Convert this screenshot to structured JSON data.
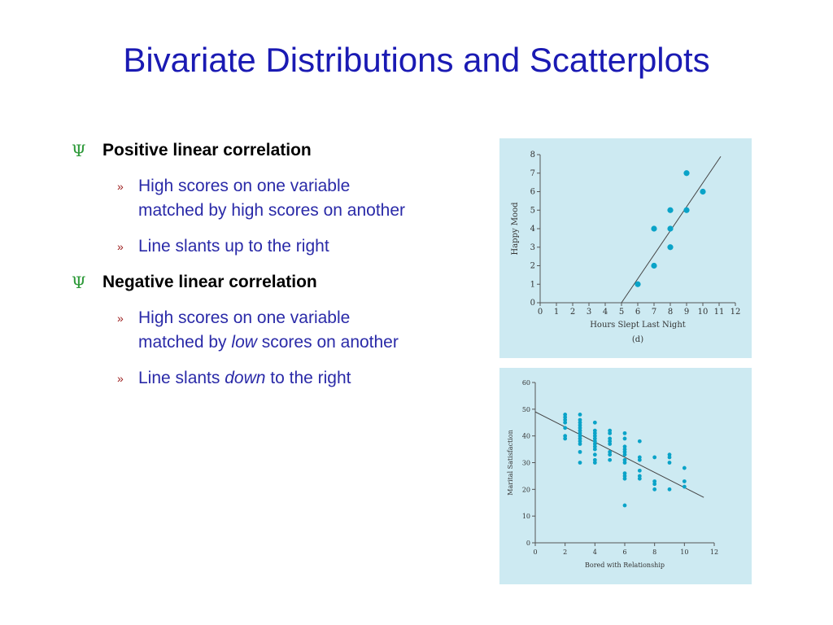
{
  "slide": {
    "title": "Bivariate Distributions and Scatterplots",
    "bullets": [
      {
        "level1": "Positive linear correlation",
        "items": [
          {
            "line1": "High scores on one variable",
            "line2_pre": "matched by high scores on another",
            "line2_em": "",
            "line2_post": ""
          },
          {
            "line1": "",
            "line2_pre": "Line slants up to the right",
            "line2_em": "",
            "line2_post": ""
          }
        ]
      },
      {
        "level1": "Negative linear correlation",
        "items": [
          {
            "line1": "High scores on one variable",
            "line2_pre": "matched by ",
            "line2_em": "low",
            "line2_post": " scores on another"
          },
          {
            "line1": "",
            "line2_pre": "Line slants ",
            "line2_em": "down",
            "line2_post": " to the right"
          }
        ]
      }
    ],
    "bullet_colors": {
      "level1_marker": "#2e9a3a",
      "level2_marker": "#9a1a1a",
      "level2_text": "#2a2aa8",
      "title": "#1a1ab3"
    }
  },
  "chart_data": [
    {
      "type": "scatter",
      "xlabel": "Hours Slept Last Night",
      "ylabel": "Happy Mood",
      "caption": "(d)",
      "xlim": [
        0,
        12
      ],
      "ylim": [
        0,
        8
      ],
      "xticks": [
        0,
        1,
        2,
        3,
        4,
        5,
        6,
        7,
        8,
        9,
        10,
        11,
        12
      ],
      "yticks": [
        0,
        1,
        2,
        3,
        4,
        5,
        6,
        7,
        8
      ],
      "points": [
        [
          6,
          1
        ],
        [
          7,
          2
        ],
        [
          7,
          4
        ],
        [
          8,
          3
        ],
        [
          8,
          4
        ],
        [
          8,
          5
        ],
        [
          9,
          5
        ],
        [
          9,
          7
        ],
        [
          10,
          6
        ]
      ],
      "trend_line": [
        [
          5,
          0
        ],
        [
          11.1,
          7.9
        ]
      ],
      "point_color": "#0aa3c8",
      "background": "#cdeaf2"
    },
    {
      "type": "scatter",
      "xlabel": "Bored with Relationship",
      "ylabel": "Marital Satisfaction",
      "xlim": [
        0,
        12
      ],
      "ylim": [
        0,
        60
      ],
      "xticks": [
        0,
        2,
        4,
        6,
        8,
        10,
        12
      ],
      "yticks": [
        0,
        10,
        20,
        30,
        40,
        50,
        60
      ],
      "points": [
        [
          2,
          48
        ],
        [
          2,
          47
        ],
        [
          2,
          46
        ],
        [
          2,
          45
        ],
        [
          2,
          43
        ],
        [
          2,
          40
        ],
        [
          2,
          39
        ],
        [
          3,
          48
        ],
        [
          3,
          46
        ],
        [
          3,
          45
        ],
        [
          3,
          44
        ],
        [
          3,
          43
        ],
        [
          3,
          42
        ],
        [
          3,
          41
        ],
        [
          3,
          40
        ],
        [
          3,
          39
        ],
        [
          3,
          38
        ],
        [
          3,
          37
        ],
        [
          3,
          34
        ],
        [
          3,
          30
        ],
        [
          4,
          45
        ],
        [
          4,
          42
        ],
        [
          4,
          41
        ],
        [
          4,
          40
        ],
        [
          4,
          39
        ],
        [
          4,
          38
        ],
        [
          4,
          37
        ],
        [
          4,
          36
        ],
        [
          4,
          35
        ],
        [
          4,
          33
        ],
        [
          4,
          31
        ],
        [
          4,
          30
        ],
        [
          5,
          42
        ],
        [
          5,
          41
        ],
        [
          5,
          39
        ],
        [
          5,
          38
        ],
        [
          5,
          37
        ],
        [
          5,
          34
        ],
        [
          5,
          33
        ],
        [
          5,
          31
        ],
        [
          6,
          41
        ],
        [
          6,
          39
        ],
        [
          6,
          36
        ],
        [
          6,
          35
        ],
        [
          6,
          34
        ],
        [
          6,
          33
        ],
        [
          6,
          31
        ],
        [
          6,
          30
        ],
        [
          6,
          26
        ],
        [
          6,
          25
        ],
        [
          6,
          24
        ],
        [
          6,
          14
        ],
        [
          7,
          38
        ],
        [
          7,
          32
        ],
        [
          7,
          31
        ],
        [
          7,
          27
        ],
        [
          7,
          25
        ],
        [
          7,
          24
        ],
        [
          8,
          32
        ],
        [
          8,
          23
        ],
        [
          8,
          22
        ],
        [
          8,
          20
        ],
        [
          9,
          33
        ],
        [
          9,
          32
        ],
        [
          9,
          30
        ],
        [
          9,
          20
        ],
        [
          10,
          28
        ],
        [
          10,
          23
        ],
        [
          10,
          21
        ]
      ],
      "trend_line": [
        [
          0,
          49
        ],
        [
          11.3,
          17
        ]
      ],
      "point_color": "#0aa3c8",
      "background": "#cdeaf2"
    }
  ]
}
